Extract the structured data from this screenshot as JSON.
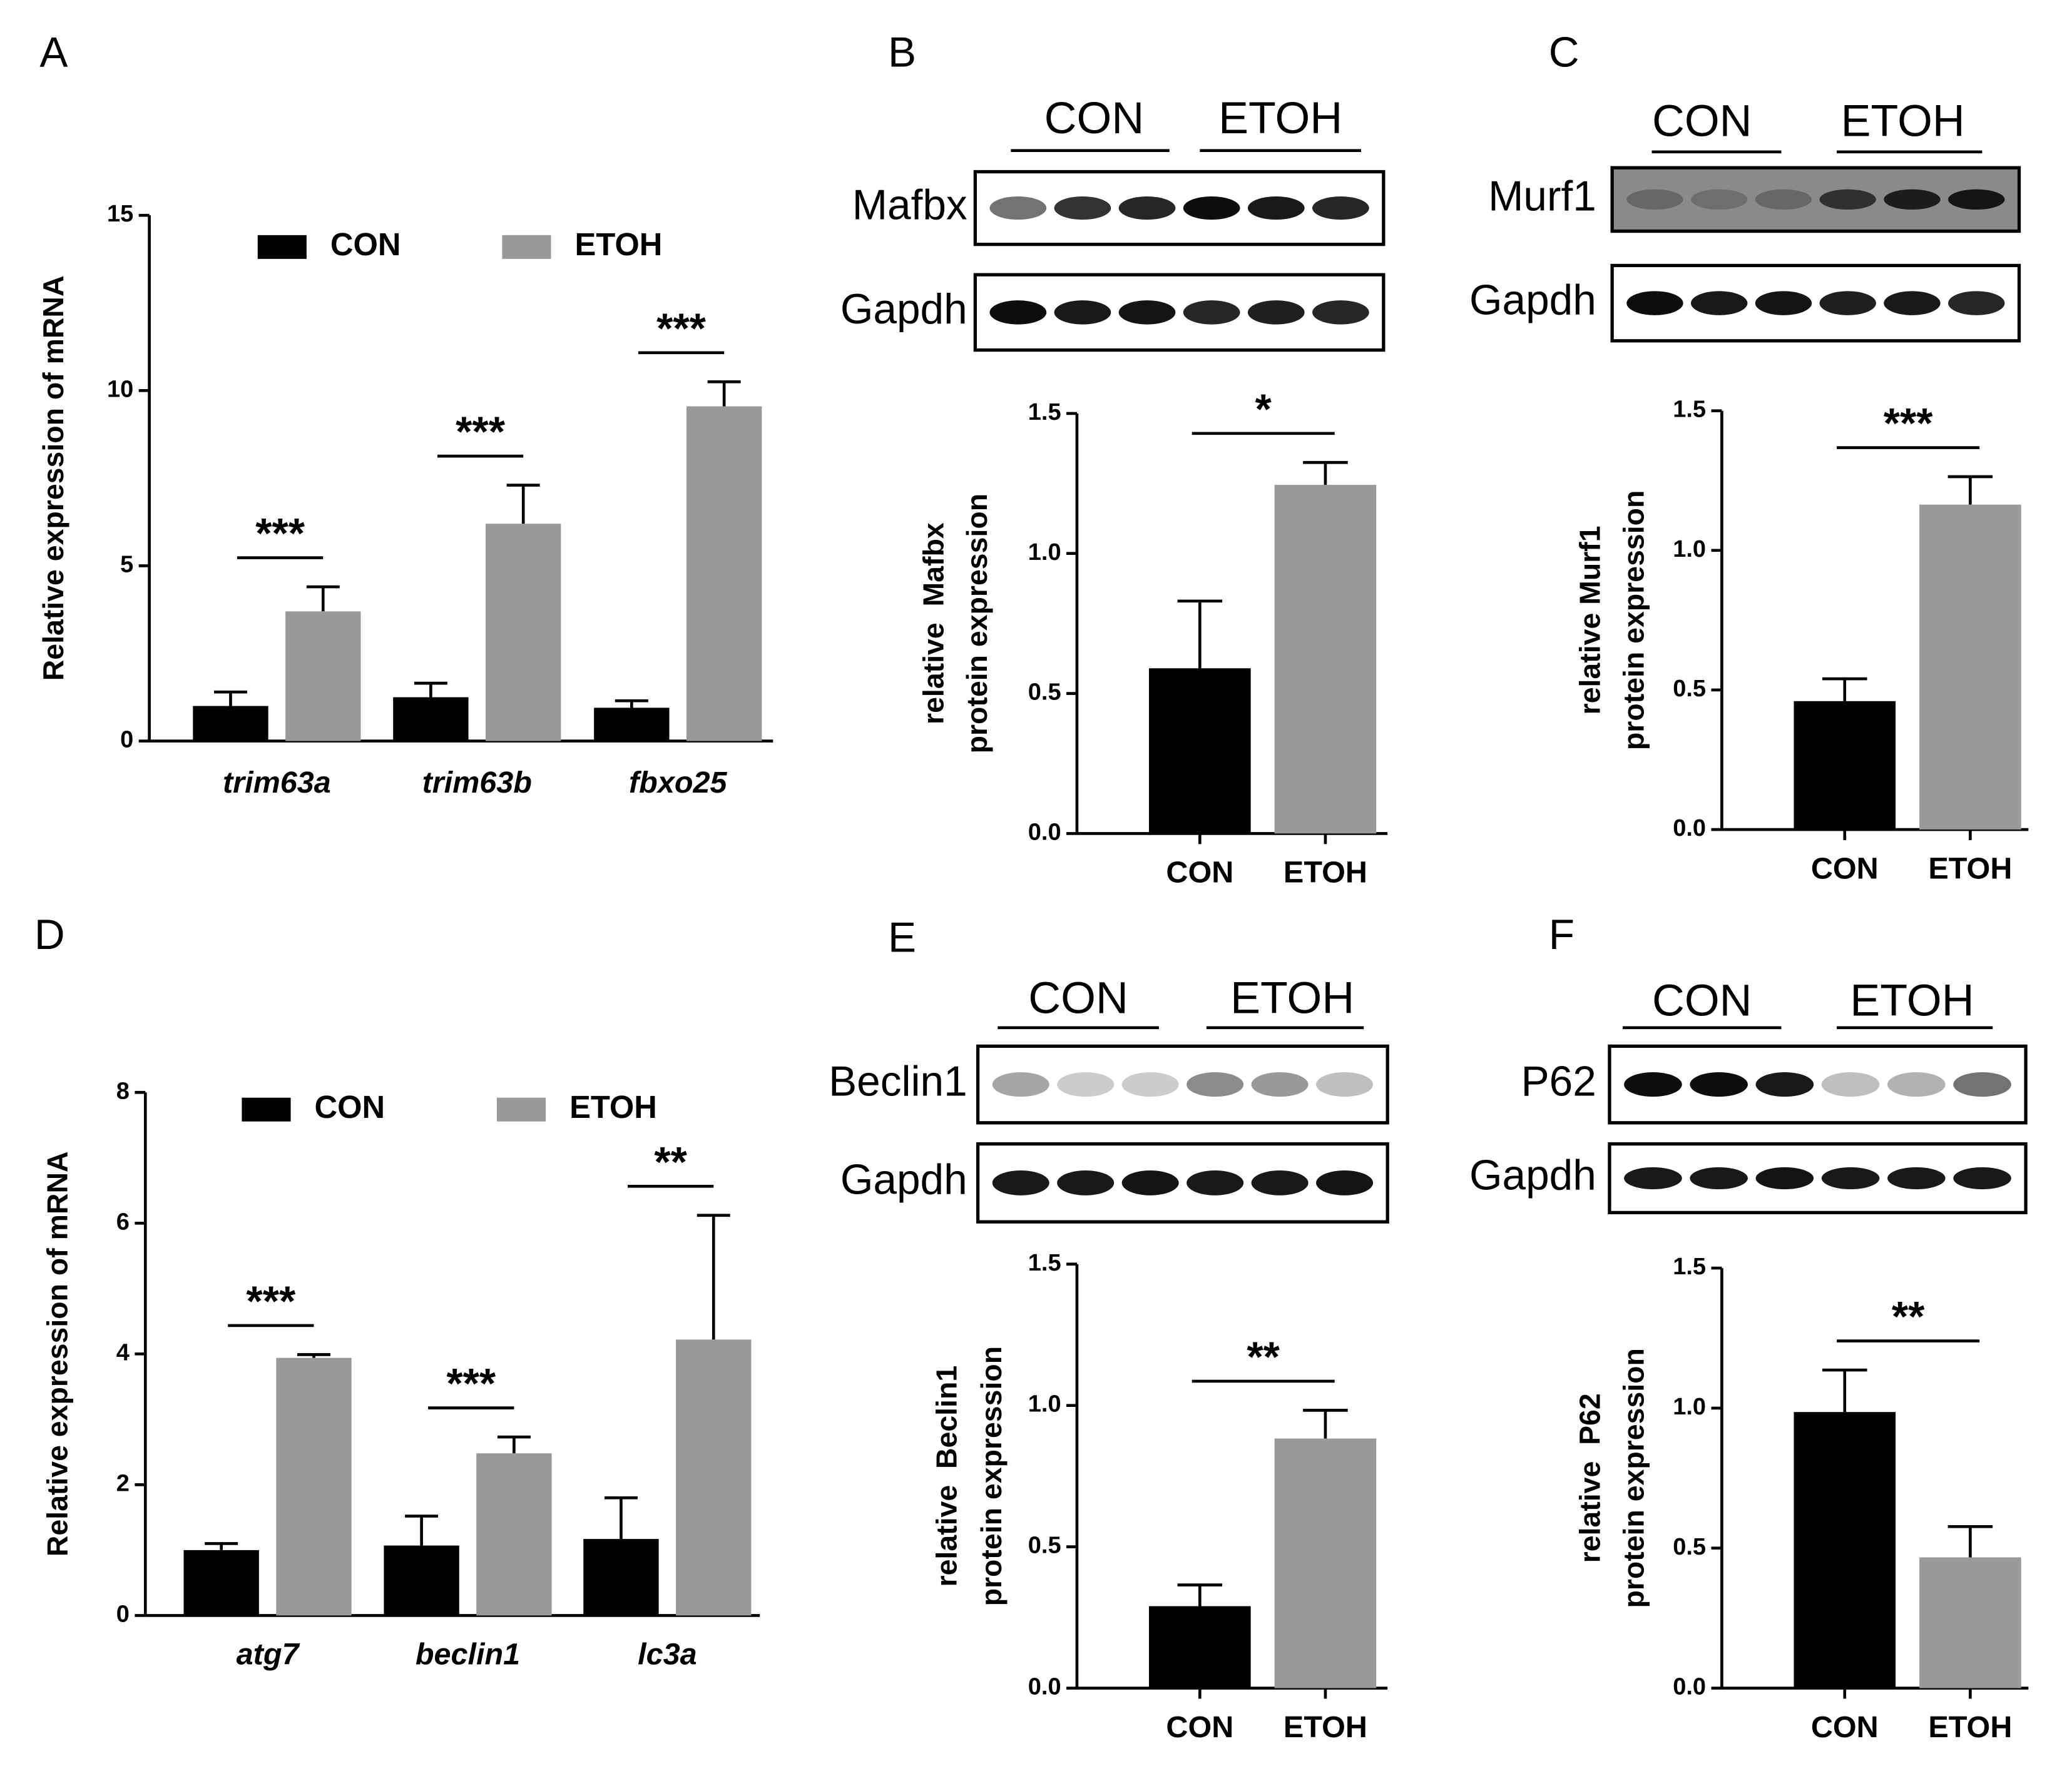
{
  "panel_labels": [
    "A",
    "B",
    "C",
    "D",
    "E",
    "F"
  ],
  "blots": [
    {
      "groups": [
        "CON",
        "ETOH"
      ],
      "rows": [
        "Mafbx",
        "Gapdh"
      ]
    },
    {
      "groups": [
        "CON",
        "ETOH"
      ],
      "rows": [
        "Murf1",
        "Gapdh"
      ]
    },
    {
      "groups": [
        "CON",
        "ETOH"
      ],
      "rows": [
        "Beclin1",
        "Gapdh"
      ]
    },
    {
      "groups": [
        "CON",
        "ETOH"
      ],
      "rows": [
        "P62",
        "Gapdh"
      ]
    }
  ],
  "chart_data": [
    {
      "type": "grouped_bar",
      "ylabel": "Relative expression of mRNA",
      "categories": [
        "trim63a",
        "trim63b",
        "fbxo25"
      ],
      "series": [
        {
          "name": "CON",
          "color": "#000000",
          "values": [
            1.0,
            1.25,
            0.95
          ],
          "errors": [
            0.4,
            0.4,
            0.2
          ]
        },
        {
          "name": "ETOH",
          "color": "#999999",
          "values": [
            3.7,
            6.2,
            9.55
          ],
          "errors": [
            0.7,
            1.1,
            0.7
          ]
        }
      ],
      "significance": [
        "***",
        "***",
        "***"
      ],
      "ylim": [
        0,
        15
      ],
      "yticks": [
        0,
        5,
        10,
        15
      ]
    },
    {
      "type": "bar",
      "ylabel": [
        "relative  Mafbx",
        "protein expression"
      ],
      "categories": [
        "CON",
        "ETOH"
      ],
      "values": [
        0.59,
        1.245
      ],
      "errors": [
        0.24,
        0.08
      ],
      "colors": [
        "#000000",
        "#999999"
      ],
      "significance": "*",
      "ylim": [
        0,
        1.5
      ],
      "yticks": [
        {
          "value": 0,
          "label": "0.0"
        },
        0.5,
        {
          "value": 1,
          "label": "1.0"
        },
        1.5
      ]
    },
    {
      "type": "bar",
      "ylabel": [
        "relative Murf1",
        "protein expression"
      ],
      "categories": [
        "CON",
        "ETOH"
      ],
      "values": [
        0.46,
        1.164
      ],
      "errors": [
        0.08,
        0.1
      ],
      "colors": [
        "#000000",
        "#999999"
      ],
      "significance": "***",
      "ylim": [
        0,
        1.5
      ],
      "yticks": [
        {
          "value": 0,
          "label": "0.0"
        },
        0.5,
        {
          "value": 1,
          "label": "1.0"
        },
        1.5
      ]
    },
    {
      "type": "grouped_bar",
      "ylabel": "Relative expression of mRNA",
      "categories": [
        "atg7",
        "beclin1",
        "lc3a"
      ],
      "series": [
        {
          "name": "CON",
          "color": "#000000",
          "values": [
            1.0,
            1.07,
            1.17
          ],
          "errors": [
            0.1,
            0.45,
            0.63
          ]
        },
        {
          "name": "ETOH",
          "color": "#999999",
          "values": [
            3.94,
            2.48,
            4.22
          ],
          "errors": [
            0.05,
            0.25,
            1.9
          ]
        }
      ],
      "significance": [
        "***",
        "***",
        "**"
      ],
      "ylim": [
        0,
        8
      ],
      "yticks": [
        0,
        2,
        4,
        6,
        8
      ]
    },
    {
      "type": "bar",
      "ylabel": [
        "relative  Beclin1",
        "protein expression"
      ],
      "categories": [
        "CON",
        "ETOH"
      ],
      "values": [
        0.29,
        0.883
      ],
      "errors": [
        0.075,
        0.1
      ],
      "colors": [
        "#000000",
        "#999999"
      ],
      "significance": "**",
      "ylim": [
        0,
        1.5
      ],
      "yticks": [
        {
          "value": 0,
          "label": "0.0"
        },
        0.5,
        {
          "value": 1,
          "label": "1.0"
        },
        1.5
      ]
    },
    {
      "type": "bar",
      "ylabel": [
        "relative  P62",
        "protein expression"
      ],
      "categories": [
        "CON",
        "ETOH"
      ],
      "values": [
        0.986,
        0.467
      ],
      "errors": [
        0.15,
        0.11
      ],
      "colors": [
        "#000000",
        "#999999"
      ],
      "significance": "**",
      "ylim": [
        0,
        1.5
      ],
      "yticks": [
        {
          "value": 0,
          "label": "0.0"
        },
        0.5,
        {
          "value": 1,
          "label": "1.0"
        },
        1.5
      ]
    }
  ]
}
